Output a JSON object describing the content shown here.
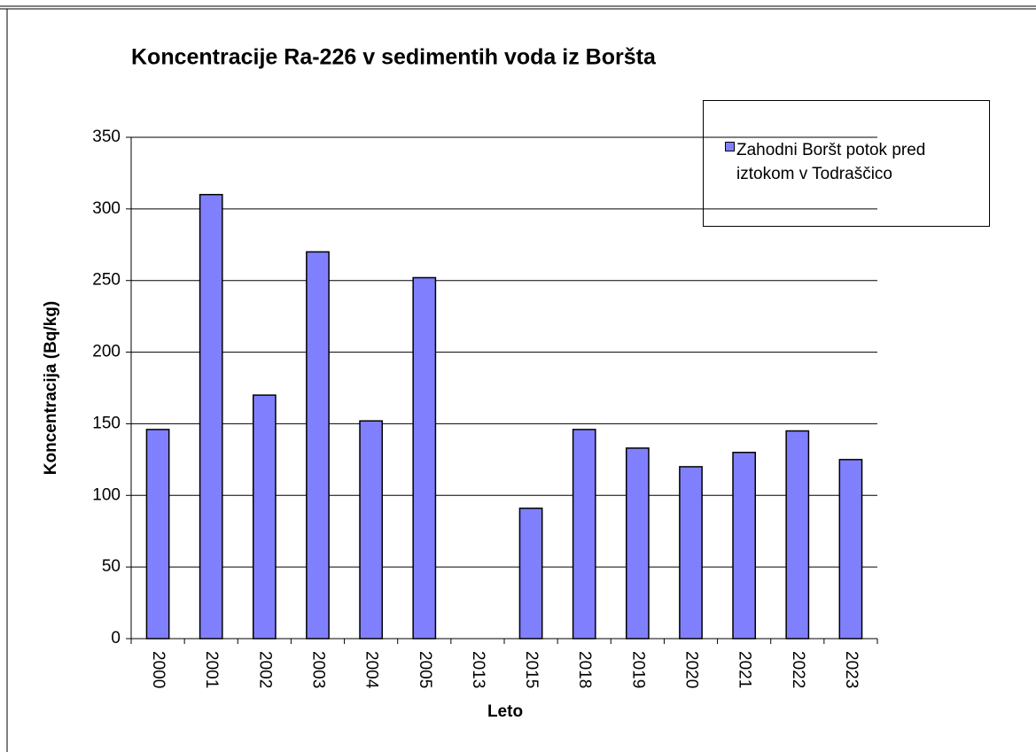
{
  "chart_data": {
    "type": "bar",
    "title": "Koncentracije Ra-226 v sedimentih voda iz Boršta",
    "x_label": "Leto",
    "y_label": "Koncentracija (Bq/kg)",
    "categories": [
      "2000",
      "2001",
      "2002",
      "2003",
      "2004",
      "2005",
      "2013",
      "2015",
      "2018",
      "2019",
      "2020",
      "2021",
      "2022",
      "2023"
    ],
    "series": [
      {
        "name": "Zahodni Boršt potok pred iztokom v Todraščico",
        "color": "#8080ff",
        "values": [
          146,
          310,
          170,
          270,
          152,
          252,
          null,
          91,
          146,
          133,
          120,
          130,
          145,
          125
        ]
      }
    ],
    "ylim": [
      0,
      350
    ],
    "yticks": [
      0,
      50,
      100,
      150,
      200,
      250,
      300,
      350
    ],
    "grid": true,
    "legend": "upper right"
  }
}
